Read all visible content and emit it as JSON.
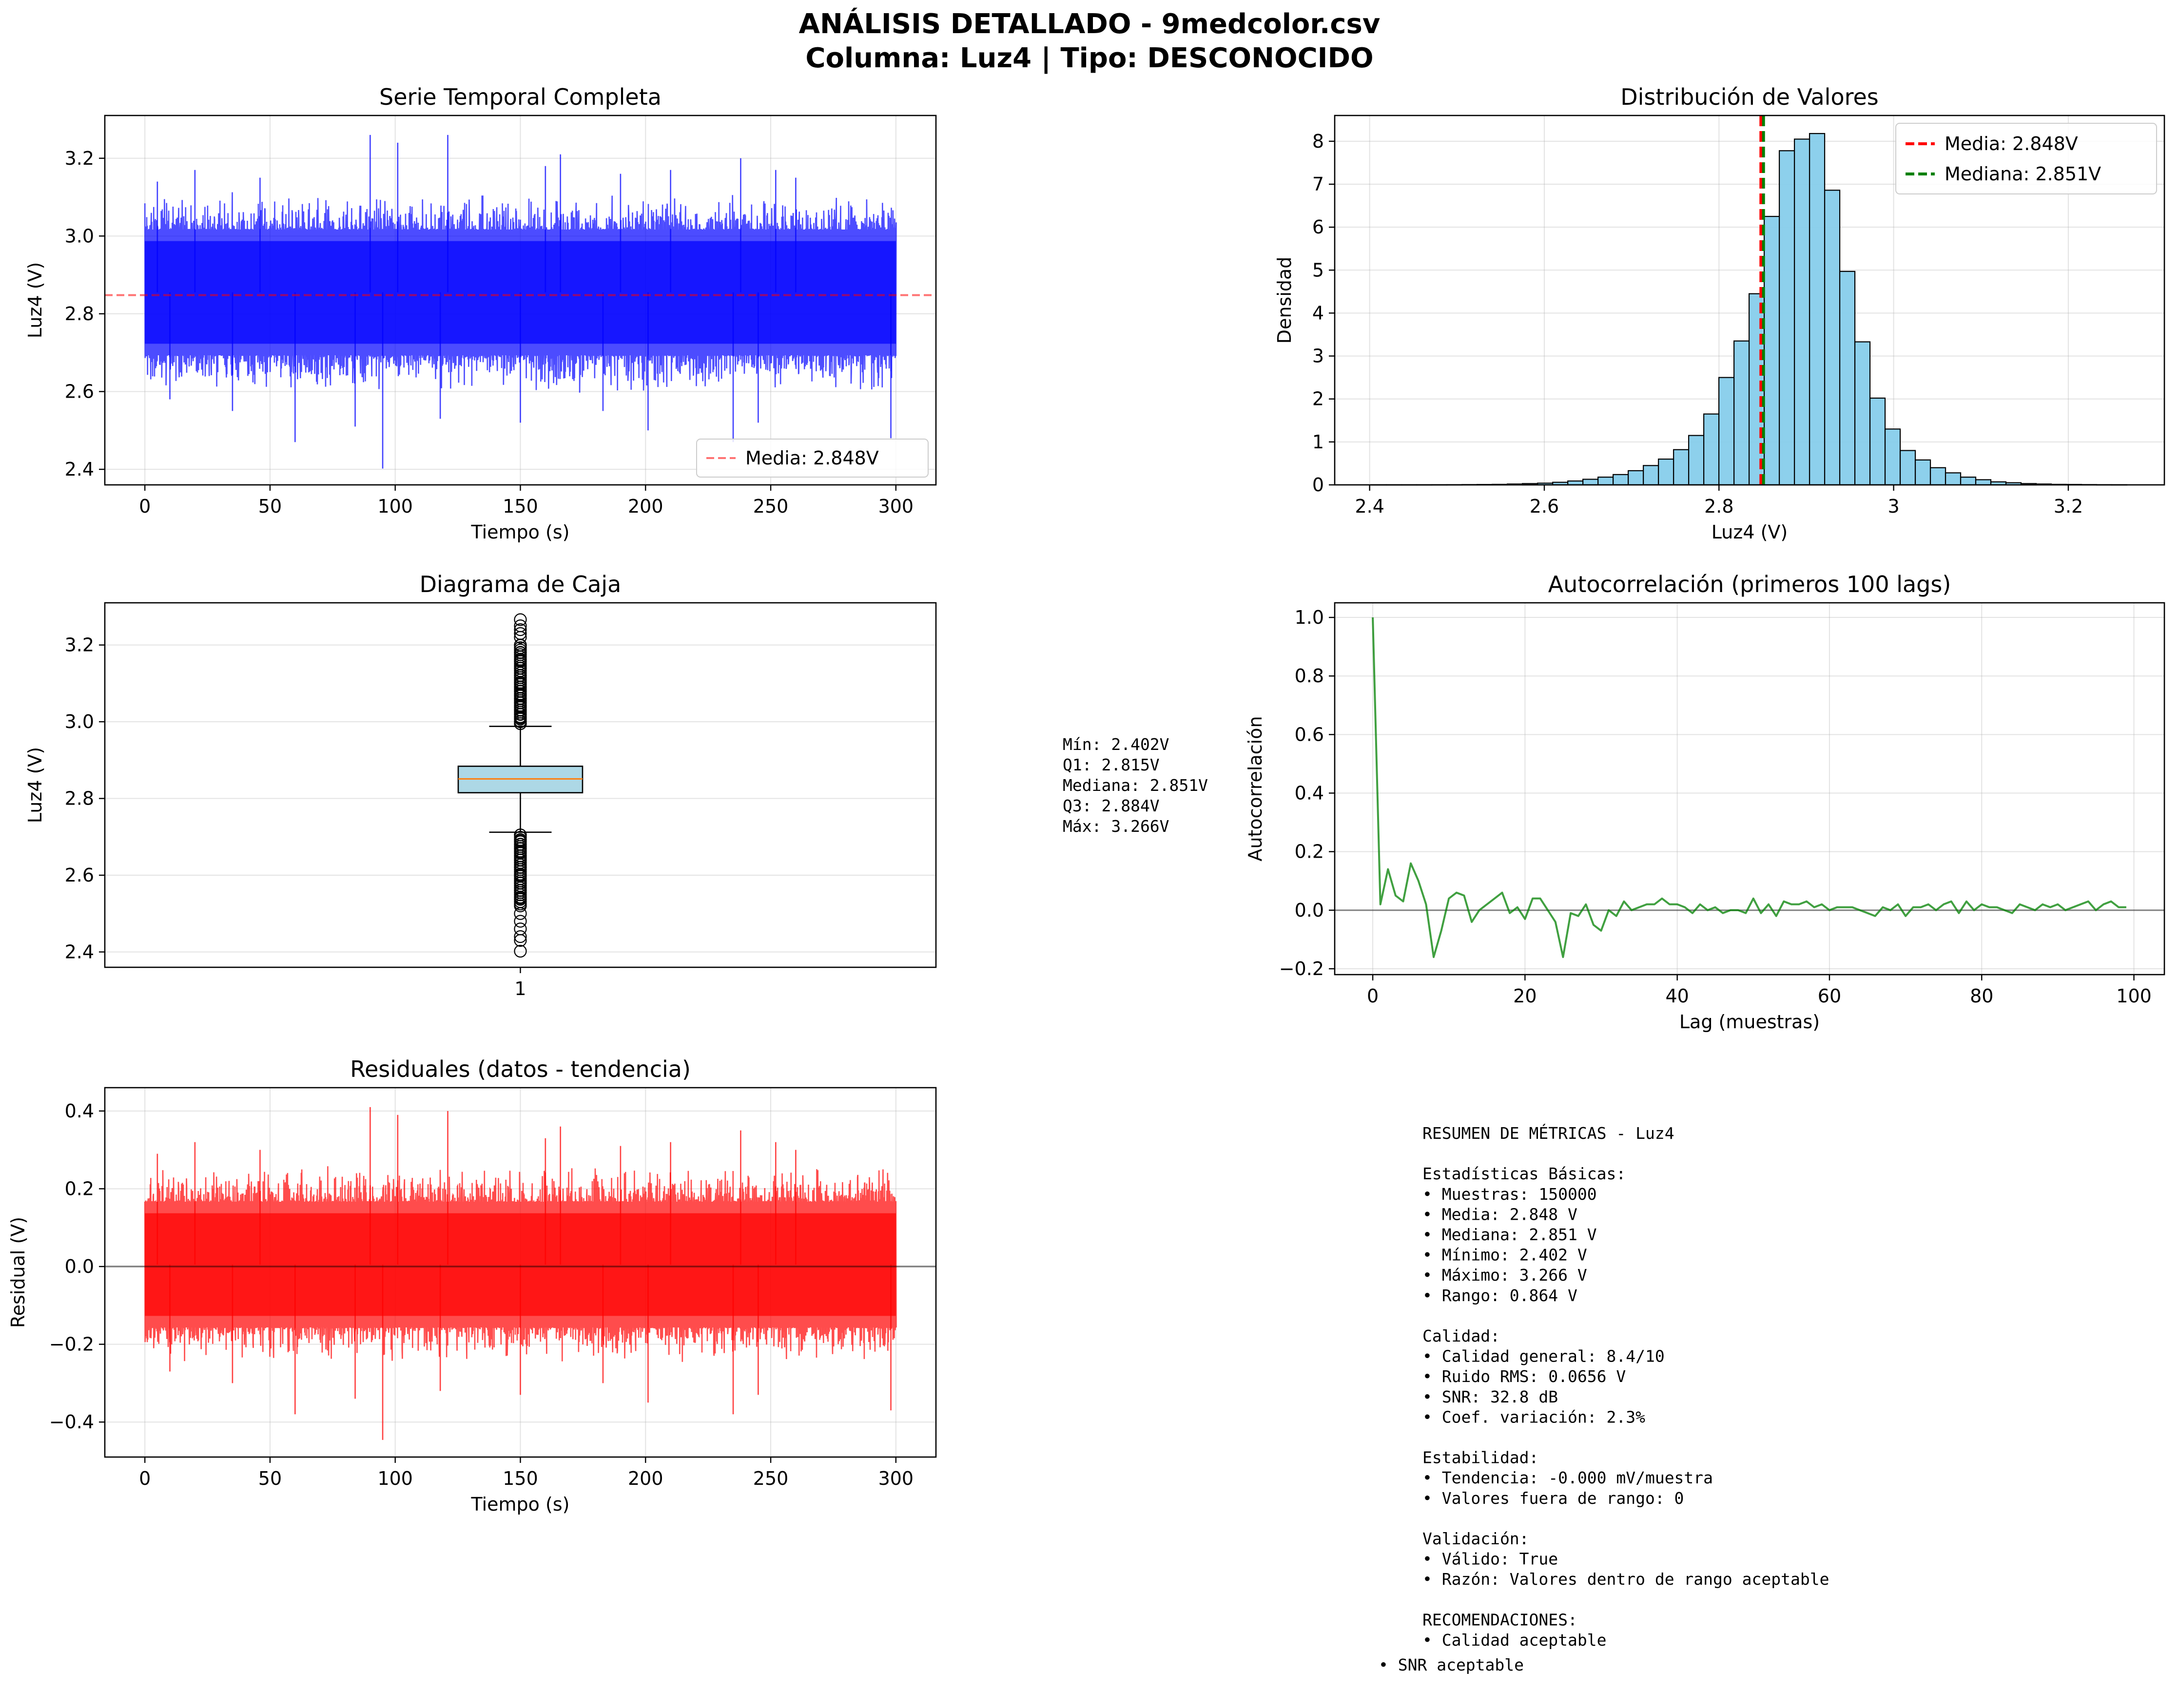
{
  "figure": {
    "title_line1": "ANÁLISIS DETALLADO - 9medcolor.csv",
    "title_line2": "Columna: Luz4 | Tipo: DESCONOCIDO"
  },
  "colors": {
    "series_blue": "#0000ff",
    "series_red": "#ff0000",
    "series_green": "#008000",
    "hist_fill": "#87ceeb",
    "box_fill": "#add8e6",
    "median_line": "#ff7f0e",
    "mean_line": "#ff0000",
    "median_ref": "#008000"
  },
  "chart_data": [
    {
      "id": "serie",
      "type": "line",
      "title": "Serie Temporal Completa",
      "xlabel": "Tiempo (s)",
      "ylabel": "Luz4 (V)",
      "xlim": [
        -16,
        316
      ],
      "ylim": [
        2.36,
        3.31
      ],
      "xticks": [
        0,
        50,
        100,
        150,
        200,
        250,
        300
      ],
      "yticks": [
        2.4,
        2.6,
        2.8,
        3.0,
        3.2
      ],
      "grid": true,
      "legend": "lower-right",
      "legend_label": "Media: 2.848V",
      "mean": 2.848,
      "x_range": [
        0,
        300
      ],
      "envelope": {
        "core_low": 2.69,
        "core_high": 3.02,
        "min": 2.402,
        "max": 3.266
      },
      "extreme_spikes_high": [
        [
          5,
          3.14
        ],
        [
          20,
          3.17
        ],
        [
          46,
          3.15
        ],
        [
          90,
          3.26
        ],
        [
          101,
          3.24
        ],
        [
          121,
          3.26
        ],
        [
          160,
          3.18
        ],
        [
          166,
          3.21
        ],
        [
          190,
          3.16
        ],
        [
          210,
          3.17
        ],
        [
          238,
          3.2
        ],
        [
          252,
          3.17
        ],
        [
          260,
          3.15
        ]
      ],
      "extreme_spikes_low": [
        [
          10,
          2.58
        ],
        [
          35,
          2.55
        ],
        [
          60,
          2.47
        ],
        [
          84,
          2.51
        ],
        [
          95,
          2.402
        ],
        [
          118,
          2.53
        ],
        [
          150,
          2.52
        ],
        [
          183,
          2.55
        ],
        [
          201,
          2.5
        ],
        [
          235,
          2.47
        ],
        [
          245,
          2.52
        ],
        [
          298,
          2.48
        ]
      ]
    },
    {
      "id": "hist",
      "type": "bar",
      "title": "Distribución de Valores",
      "xlabel": "Luz4 (V)",
      "ylabel": "Densidad",
      "xlim": [
        2.36,
        3.31
      ],
      "ylim": [
        0,
        8.6
      ],
      "xticks": [
        2.4,
        2.6,
        2.8,
        3.0,
        3.2
      ],
      "yticks": [
        0,
        1,
        2,
        3,
        4,
        5,
        6,
        7,
        8
      ],
      "grid": true,
      "legend": "top-right",
      "bin_start": 2.402,
      "bin_width": 0.0173,
      "values": [
        0.002,
        0.002,
        0.002,
        0.002,
        0.003,
        0.004,
        0.006,
        0.008,
        0.012,
        0.02,
        0.03,
        0.04,
        0.06,
        0.09,
        0.13,
        0.18,
        0.24,
        0.33,
        0.45,
        0.6,
        0.82,
        1.15,
        1.65,
        2.5,
        3.35,
        4.45,
        6.25,
        7.78,
        8.05,
        8.18,
        6.86,
        4.97,
        3.33,
        2.02,
        1.3,
        0.8,
        0.58,
        0.4,
        0.28,
        0.18,
        0.12,
        0.07,
        0.05,
        0.03,
        0.02,
        0.012,
        0.01,
        0.006,
        0.004,
        0.003
      ],
      "mean": 2.848,
      "median": 2.851,
      "legend_mean": "Media: 2.848V",
      "legend_median": "Mediana: 2.851V"
    },
    {
      "id": "box",
      "type": "box",
      "title": "Diagrama de Caja",
      "ylabel": "Luz4 (V)",
      "ylim": [
        2.36,
        3.31
      ],
      "yticks": [
        2.4,
        2.6,
        2.8,
        3.0,
        3.2
      ],
      "xtick": "1",
      "grid": true,
      "min": 2.402,
      "q1": 2.815,
      "median": 2.851,
      "q3": 2.884,
      "max": 3.266,
      "whisker_low": 2.712,
      "whisker_high": 2.988,
      "outliers_high": [
        2.995,
        3.0,
        3.01,
        3.02,
        3.03,
        3.04,
        3.05,
        3.06,
        3.07,
        3.08,
        3.09,
        3.1,
        3.12,
        3.14,
        3.16,
        3.18,
        3.2,
        3.22,
        3.23,
        3.24,
        3.25,
        3.266
      ],
      "outliers_low": [
        2.705,
        2.69,
        2.68,
        2.67,
        2.66,
        2.65,
        2.64,
        2.62,
        2.6,
        2.58,
        2.56,
        2.54,
        2.52,
        2.5,
        2.48,
        2.46,
        2.44,
        2.43,
        2.402
      ]
    },
    {
      "id": "acf",
      "type": "line",
      "title": "Autocorrelación (primeros 100 lags)",
      "xlabel": "Lag (muestras)",
      "ylabel": "Autocorrelación",
      "xlim": [
        -5,
        104
      ],
      "ylim": [
        -0.22,
        1.05
      ],
      "xticks": [
        0,
        20,
        40,
        60,
        80,
        100
      ],
      "yticks": [
        -0.2,
        0.0,
        0.2,
        0.4,
        0.6,
        0.8,
        1.0
      ],
      "grid": true,
      "values": [
        1.0,
        0.02,
        0.14,
        0.05,
        0.03,
        0.16,
        0.1,
        0.02,
        -0.16,
        -0.07,
        0.04,
        0.06,
        0.05,
        -0.04,
        0.0,
        0.02,
        0.04,
        0.06,
        -0.01,
        0.01,
        -0.03,
        0.04,
        0.04,
        0.0,
        -0.04,
        -0.16,
        -0.01,
        -0.02,
        0.02,
        -0.05,
        -0.07,
        0.0,
        -0.02,
        0.03,
        0.0,
        0.01,
        0.02,
        0.02,
        0.04,
        0.02,
        0.02,
        0.01,
        -0.01,
        0.02,
        0.0,
        0.01,
        -0.01,
        0.0,
        0.0,
        -0.01,
        0.04,
        -0.01,
        0.02,
        -0.02,
        0.03,
        0.02,
        0.02,
        0.03,
        0.01,
        0.02,
        0.0,
        0.01,
        0.01,
        0.01,
        0.0,
        -0.01,
        -0.02,
        0.01,
        0.0,
        0.02,
        -0.02,
        0.01,
        0.01,
        0.02,
        0.0,
        0.02,
        0.03,
        -0.01,
        0.03,
        0.0,
        0.02,
        0.01,
        0.01,
        0.0,
        -0.01,
        0.02,
        0.01,
        0.0,
        0.02,
        0.01,
        0.02,
        0.0,
        0.01,
        0.02,
        0.03,
        0.0,
        0.02,
        0.03,
        0.01,
        0.01
      ]
    },
    {
      "id": "resid",
      "type": "line",
      "title": "Residuales (datos - tendencia)",
      "xlabel": "Tiempo (s)",
      "ylabel": "Residual (V)",
      "xlim": [
        -16,
        316
      ],
      "ylim": [
        -0.49,
        0.46
      ],
      "xticks": [
        0,
        50,
        100,
        150,
        200,
        250,
        300
      ],
      "yticks": [
        -0.4,
        -0.2,
        0.0,
        0.2,
        0.4
      ],
      "grid": true,
      "x_range": [
        0,
        300
      ],
      "envelope": {
        "core_low": -0.16,
        "core_high": 0.17,
        "min": -0.446,
        "max": 0.418
      },
      "extreme_spikes_high": [
        [
          5,
          0.29
        ],
        [
          20,
          0.32
        ],
        [
          46,
          0.3
        ],
        [
          90,
          0.41
        ],
        [
          101,
          0.39
        ],
        [
          121,
          0.4
        ],
        [
          160,
          0.33
        ],
        [
          166,
          0.36
        ],
        [
          190,
          0.31
        ],
        [
          210,
          0.32
        ],
        [
          238,
          0.35
        ],
        [
          252,
          0.32
        ],
        [
          260,
          0.3
        ]
      ],
      "extreme_spikes_low": [
        [
          10,
          -0.27
        ],
        [
          35,
          -0.3
        ],
        [
          60,
          -0.38
        ],
        [
          84,
          -0.34
        ],
        [
          95,
          -0.446
        ],
        [
          118,
          -0.32
        ],
        [
          150,
          -0.33
        ],
        [
          183,
          -0.3
        ],
        [
          201,
          -0.35
        ],
        [
          235,
          -0.38
        ],
        [
          245,
          -0.33
        ],
        [
          298,
          -0.37
        ]
      ]
    }
  ],
  "box_stats": {
    "min": "Mín: 2.402V",
    "q1": "Q1: 2.815V",
    "median": "Mediana: 2.851V",
    "q3": "Q3: 2.884V",
    "max": "Máx: 3.266V"
  },
  "summary": {
    "lines": [
      "RESUMEN DE MÉTRICAS - Luz4",
      "",
      "Estadísticas Básicas:",
      "• Muestras: 150000",
      "• Media: 2.848 V",
      "• Mediana: 2.851 V",
      "• Mínimo: 2.402 V",
      "• Máximo: 3.266 V",
      "• Rango: 0.864 V",
      "",
      "Calidad:",
      "• Calidad general: 8.4/10",
      "• Ruido RMS: 0.0656 V",
      "• SNR: 32.8 dB",
      "• Coef. variación: 2.3%",
      "",
      "Estabilidad:",
      "• Tendencia: -0.000 mV/muestra",
      "• Valores fuera de rango: 0",
      "",
      "Validación:",
      "• Válido: True",
      "• Razón: Valores dentro de rango aceptable",
      "",
      "RECOMENDACIONES:",
      "• Calidad aceptable"
    ],
    "last_line": "• SNR aceptable"
  }
}
